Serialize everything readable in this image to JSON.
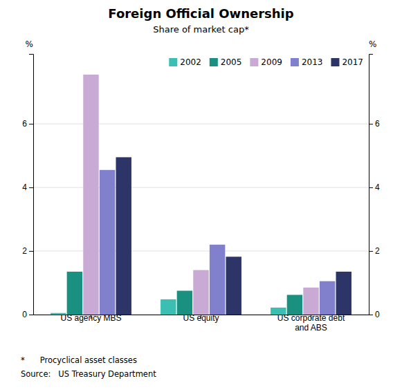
{
  "chart_data": {
    "type": "bar",
    "title": "Foreign Official Ownership",
    "subtitle": "Share of market cap*",
    "ylabel": "%",
    "y2label": "%",
    "categories": [
      "US agency MBS",
      "US equity",
      "US corporate debt\nand ABS"
    ],
    "series": [
      {
        "name": "2002",
        "color": "#3bbfb2",
        "values": [
          0.05,
          0.48,
          0.22
        ]
      },
      {
        "name": "2005",
        "color": "#1a9080",
        "values": [
          1.35,
          0.75,
          0.62
        ]
      },
      {
        "name": "2009",
        "color": "#c8aad4",
        "values": [
          7.55,
          1.4,
          0.85
        ]
      },
      {
        "name": "2013",
        "color": "#8080cc",
        "values": [
          4.55,
          2.2,
          1.05
        ]
      },
      {
        "name": "2017",
        "color": "#2d3568",
        "values": [
          4.95,
          1.82,
          1.35
        ]
      }
    ],
    "ylim": [
      0,
      8.2
    ],
    "yticks": [
      0,
      2,
      4,
      6
    ],
    "y2lim": [
      0,
      8.2
    ],
    "y2ticks": [
      0,
      2,
      4,
      6
    ],
    "grid": true,
    "legend": "upper right",
    "annotations": [
      "*      Procyclical asset classes",
      "Source:   US Treasury Department"
    ]
  }
}
